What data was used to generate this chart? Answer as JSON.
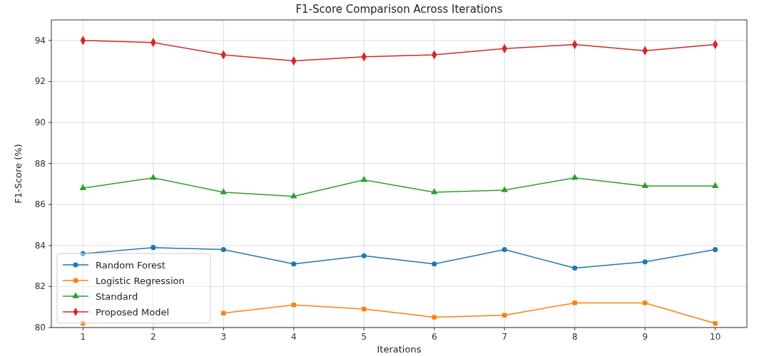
{
  "chart_data": {
    "type": "line",
    "title": "F1-Score Comparison Across Iterations",
    "xlabel": "Iterations",
    "ylabel": "F1-Score (%)",
    "x": [
      1,
      2,
      3,
      4,
      5,
      6,
      7,
      8,
      9,
      10
    ],
    "series": [
      {
        "name": "Random Forest",
        "color": "#1f77b4",
        "marker": "circle",
        "values": [
          83.6,
          83.9,
          83.8,
          83.1,
          83.5,
          83.1,
          83.8,
          82.9,
          83.2,
          83.8
        ]
      },
      {
        "name": "Logistic Regression",
        "color": "#ff7f0e",
        "marker": "square",
        "values": [
          80.2,
          null,
          80.7,
          81.1,
          80.9,
          80.5,
          80.6,
          81.2,
          81.2,
          80.2
        ]
      },
      {
        "name": "Standard",
        "color": "#2ca02c",
        "marker": "triangle",
        "values": [
          86.8,
          87.3,
          86.6,
          86.4,
          87.2,
          86.6,
          86.7,
          87.3,
          86.9,
          86.9
        ]
      },
      {
        "name": "Proposed Model",
        "color": "#d62728",
        "marker": "diamond",
        "values": [
          94.0,
          93.9,
          93.3,
          93.0,
          93.2,
          93.3,
          93.6,
          93.8,
          93.5,
          93.8
        ]
      }
    ],
    "xlim": [
      0.55,
      10.45
    ],
    "xticks": [
      1,
      2,
      3,
      4,
      5,
      6,
      7,
      8,
      9,
      10
    ],
    "ylim": [
      80,
      95
    ],
    "yticks": [
      80,
      82,
      84,
      86,
      88,
      90,
      92,
      94
    ],
    "grid": true,
    "legend": "bottom left",
    "line_style": "solid"
  }
}
